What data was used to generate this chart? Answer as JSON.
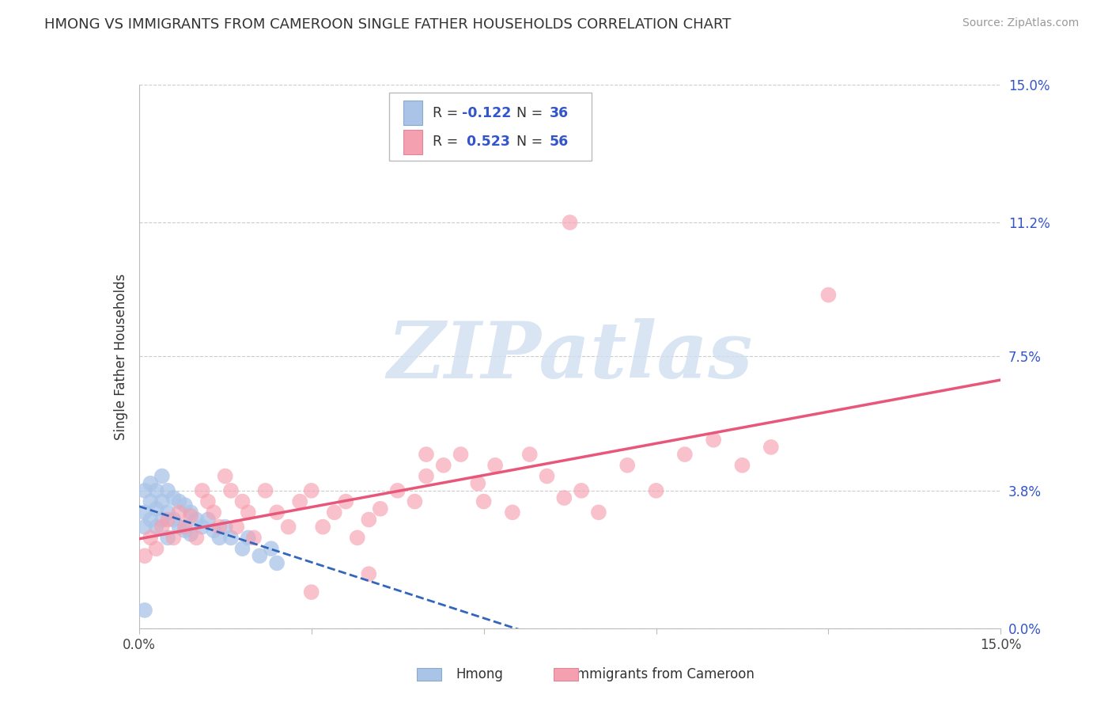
{
  "title": "HMONG VS IMMIGRANTS FROM CAMEROON SINGLE FATHER HOUSEHOLDS CORRELATION CHART",
  "source": "Source: ZipAtlas.com",
  "ylabel": "Single Father Households",
  "xlim": [
    0,
    0.15
  ],
  "ylim": [
    0,
    0.15
  ],
  "ytick_labels_right": [
    "15.0%",
    "11.2%",
    "7.5%",
    "3.8%",
    "0.0%"
  ],
  "ytick_values_right": [
    0.15,
    0.112,
    0.075,
    0.038,
    0.0
  ],
  "hmong_R": -0.122,
  "hmong_N": 36,
  "cameroon_R": 0.523,
  "cameroon_N": 56,
  "hmong_color": "#aac4e8",
  "cameroon_color": "#f5a0b0",
  "hmong_line_color": "#3366bb",
  "cameroon_line_color": "#e8567a",
  "background_color": "#ffffff",
  "grid_color": "#cccccc",
  "title_fontsize": 13,
  "watermark_text": "ZIPatlas",
  "watermark_color": "#d0dff0",
  "legend_text_color": "#3355cc",
  "legend_label_color": "#333333"
}
